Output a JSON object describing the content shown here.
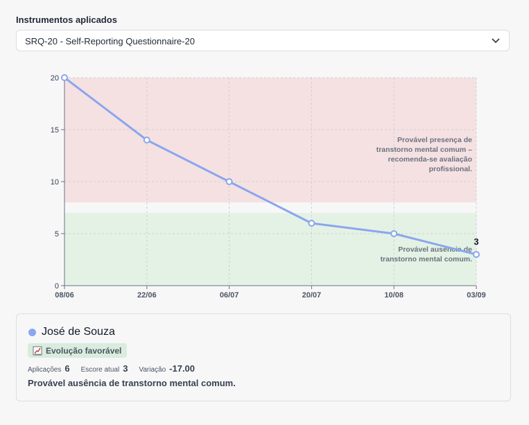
{
  "instruments": {
    "label": "Instrumentos aplicados",
    "selected": "SRQ-20 - Self-Reporting Questionnaire-20"
  },
  "colors": {
    "series": "#8aa6ee",
    "risk_zone": "#f5e1e2",
    "normal_zone": "#e3f2e4",
    "badge_bg": "#d9ecdd"
  },
  "chart_data": {
    "type": "line",
    "categories": [
      "08/06",
      "22/06",
      "06/07",
      "20/07",
      "10/08",
      "03/09"
    ],
    "values": [
      20,
      14,
      10,
      6,
      5,
      3
    ],
    "ylim": [
      0,
      20
    ],
    "yticks": [
      0,
      5,
      10,
      15,
      20
    ],
    "grid": true,
    "last_value_label": "3",
    "zones": [
      {
        "from": 8,
        "to": 20,
        "color": "#f5e1e2",
        "label": "Provável presença de transtorno mental comum – recomenda-se avaliação profissional."
      },
      {
        "from": 0,
        "to": 7,
        "color": "#e3f2e4",
        "label": "Provável ausência de transtorno mental comum."
      }
    ]
  },
  "patient": {
    "name": "José de Souza",
    "badge": "Evolução favorável",
    "badge_icon": "chart-line-icon",
    "stats": {
      "applications_label": "Aplicações",
      "applications_value": "6",
      "current_score_label": "Escore atual",
      "current_score_value": "3",
      "variation_label": "Variação",
      "variation_value": "-17.00"
    },
    "summary": "Provável ausência de transtorno mental comum."
  }
}
